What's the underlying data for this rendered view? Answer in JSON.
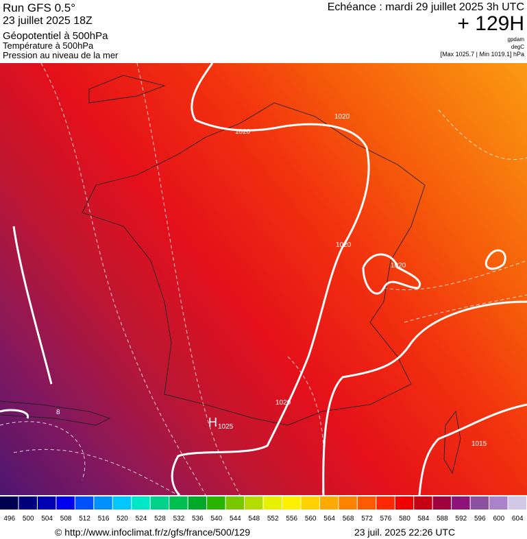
{
  "header": {
    "left": [
      "Run GFS 0.5°",
      "23 juillet 2025 18Z",
      "Géopotentiel à 500hPa",
      "Température à 500hPa",
      "Pression au niveau de la mer"
    ],
    "valid": "Echéance : mardi 29 juillet 2025 3h UTC",
    "lead": "+ 129H",
    "units": [
      "gpdam",
      "degC"
    ],
    "range": "[Max 1025.7 | Min 1019.1] hPa"
  },
  "map": {
    "labels": [
      "1020",
      "1020",
      "1020",
      "1020",
      "1020",
      "H",
      "1025",
      "1015",
      "8"
    ]
  },
  "legend": {
    "values": [
      496,
      500,
      504,
      508,
      512,
      516,
      520,
      524,
      528,
      532,
      536,
      540,
      544,
      548,
      552,
      556,
      560,
      564,
      568,
      572,
      576,
      580,
      584,
      588,
      592,
      596,
      600,
      604
    ],
    "colors": [
      "#000050",
      "#00007a",
      "#0000b4",
      "#0000f0",
      "#0050ff",
      "#0090ff",
      "#00c8ff",
      "#00e6c8",
      "#00d28c",
      "#00be50",
      "#00aa28",
      "#28b400",
      "#78c800",
      "#b4dc00",
      "#e6f000",
      "#fff000",
      "#ffd200",
      "#ffaa00",
      "#ff8200",
      "#ff5a00",
      "#ff2800",
      "#f00000",
      "#c80014",
      "#a0003c",
      "#8c1478",
      "#8c50a0",
      "#aa82c8",
      "#d2c8e6"
    ]
  },
  "footer": {
    "url": "© http://www.infoclimat.fr/z/gfs/france/500/129",
    "stamp": "23 juil. 2025 22:26 UTC"
  }
}
